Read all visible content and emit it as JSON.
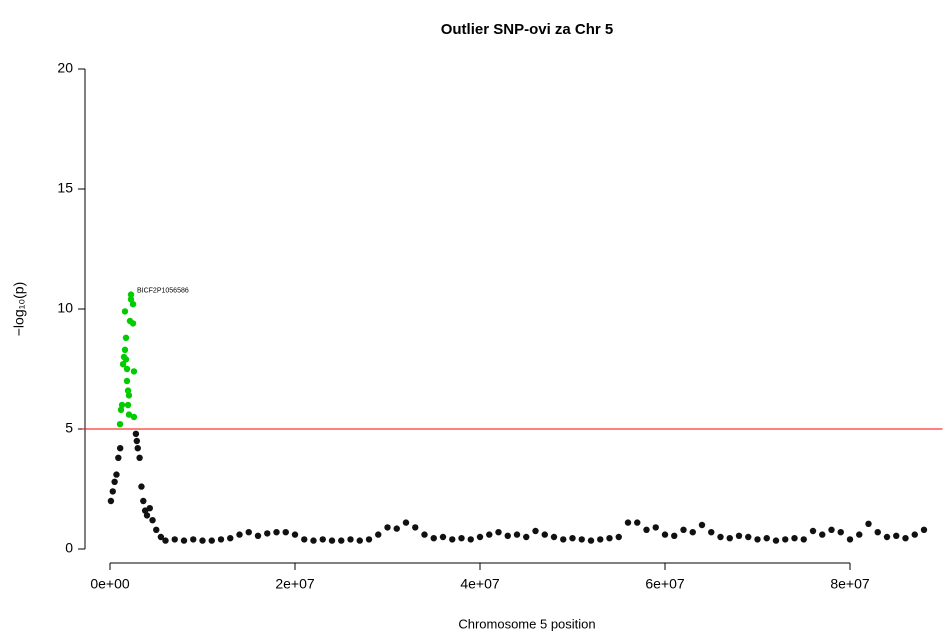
{
  "chart_data": {
    "type": "scatter",
    "title": "Outlier SNP-ovi za Chr 5",
    "x_label": "Chromosome 5 position",
    "y_label": "−log₁₀(p)",
    "xlim": [
      -3000000,
      90000000
    ],
    "ylim": [
      -0.8,
      21
    ],
    "xticks": [
      {
        "value": 0,
        "label": "0e+00"
      },
      {
        "value": 20000000,
        "label": "2e+07"
      },
      {
        "value": 40000000,
        "label": "4e+07"
      },
      {
        "value": 60000000,
        "label": "6e+07"
      },
      {
        "value": 80000000,
        "label": "8e+07"
      }
    ],
    "yticks": [
      0,
      5,
      10,
      15,
      20
    ],
    "hline": 5,
    "hline_color": "#ff0000",
    "series": [
      {
        "color": "#111111",
        "x": [
          100000,
          300000,
          500000,
          700000,
          900000,
          1100000,
          2800000,
          2900000,
          3000000,
          3200000,
          3400000,
          3600000,
          3800000,
          4000000,
          4300000,
          4600000,
          5000000,
          5500000,
          6000000,
          7000000,
          8000000,
          9000000,
          10000000,
          11000000,
          12000000,
          13000000,
          14000000,
          15000000,
          16000000,
          17000000,
          18000000,
          19000000,
          20000000,
          21000000,
          22000000,
          23000000,
          24000000,
          25000000,
          26000000,
          27000000,
          28000000,
          29000000,
          30000000,
          31000000,
          32000000,
          33000000,
          34000000,
          35000000,
          36000000,
          37000000,
          38000000,
          39000000,
          40000000,
          41000000,
          42000000,
          43000000,
          44000000,
          45000000,
          46000000,
          47000000,
          48000000,
          49000000,
          50000000,
          51000000,
          52000000,
          53000000,
          54000000,
          55000000,
          56000000,
          57000000,
          58000000,
          59000000,
          60000000,
          61000000,
          62000000,
          63000000,
          64000000,
          65000000,
          66000000,
          67000000,
          68000000,
          69000000,
          70000000,
          71000000,
          72000000,
          73000000,
          74000000,
          75000000,
          76000000,
          77000000,
          78000000,
          79000000,
          80000000,
          81000000,
          82000000,
          83000000,
          84000000,
          85000000,
          86000000,
          87000000,
          88000000
        ],
        "values": [
          2.0,
          2.4,
          2.8,
          3.1,
          3.8,
          4.2,
          4.8,
          4.5,
          4.2,
          3.8,
          2.6,
          2.0,
          1.6,
          1.4,
          1.7,
          1.2,
          0.8,
          0.5,
          0.35,
          0.4,
          0.35,
          0.4,
          0.35,
          0.35,
          0.4,
          0.45,
          0.6,
          0.7,
          0.55,
          0.65,
          0.7,
          0.7,
          0.6,
          0.4,
          0.35,
          0.4,
          0.35,
          0.35,
          0.4,
          0.35,
          0.4,
          0.6,
          0.9,
          0.85,
          1.1,
          0.9,
          0.6,
          0.45,
          0.5,
          0.4,
          0.45,
          0.4,
          0.5,
          0.6,
          0.7,
          0.55,
          0.6,
          0.5,
          0.75,
          0.6,
          0.5,
          0.4,
          0.45,
          0.4,
          0.35,
          0.4,
          0.45,
          0.5,
          1.1,
          1.1,
          0.8,
          0.9,
          0.6,
          0.55,
          0.8,
          0.7,
          1.0,
          0.7,
          0.5,
          0.45,
          0.55,
          0.5,
          0.4,
          0.45,
          0.35,
          0.4,
          0.45,
          0.4,
          0.75,
          0.6,
          0.8,
          0.7,
          0.4,
          0.6,
          1.05,
          0.7,
          0.5,
          0.55,
          0.45,
          0.6,
          0.8
        ]
      },
      {
        "color": "#00cc00",
        "x": [
          1080000,
          1190000,
          1300000,
          1410000,
          1510000,
          1620000,
          1620000,
          1730000,
          1730000,
          1840000,
          1840000,
          1950000,
          1950000,
          2050000,
          2050000,
          2160000,
          2270000,
          2270000,
          2490000,
          2490000,
          2590000,
          2590000
        ],
        "values": [
          5.2,
          5.8,
          6.0,
          7.7,
          8.0,
          8.3,
          9.9,
          8.8,
          7.9,
          7.5,
          7.0,
          6.6,
          6.0,
          6.4,
          5.6,
          9.5,
          10.4,
          10.6,
          10.2,
          9.4,
          7.4,
          5.5
        ]
      }
    ],
    "annotation": {
      "text": "BICF2P1056586",
      "x": 2270000,
      "y": 10.6
    }
  }
}
